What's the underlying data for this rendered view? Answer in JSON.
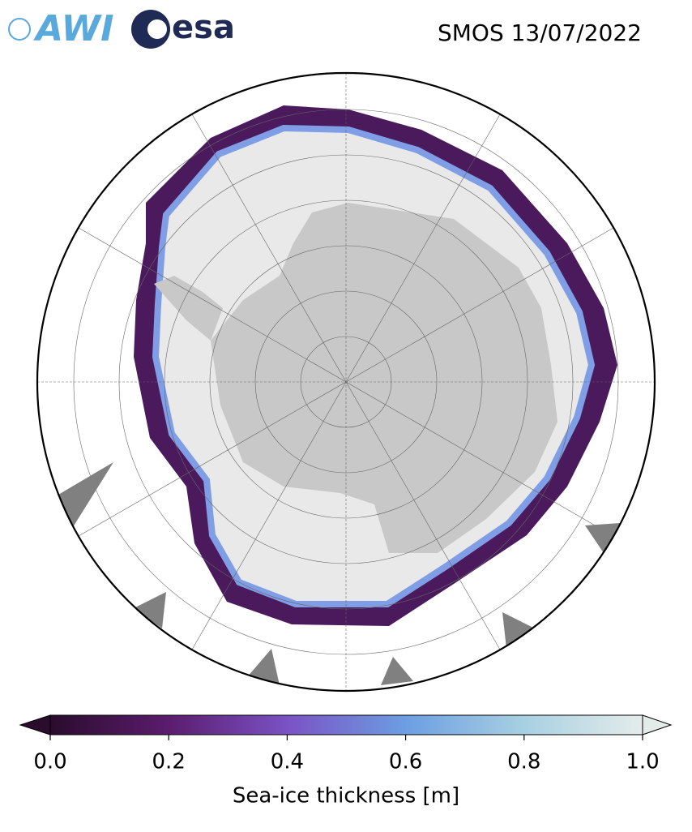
{
  "header": {
    "logos": [
      "AWI",
      "esa"
    ],
    "title": "SMOS 13/07/2022"
  },
  "colorbar": {
    "label": "Sea-ice thickness [m]",
    "lim": [
      0,
      1
    ],
    "ticks": [
      {
        "value": 0,
        "label": "0.0"
      },
      0.2,
      0.4,
      0.6,
      0.8,
      {
        "value": 1,
        "label": "1.0"
      }
    ],
    "colors": [
      "#2a0c2c",
      "#5b1c6e",
      "#7a52c4",
      "#6c9ee2",
      "#a8d0e2",
      "#e4ecea"
    ]
  }
}
